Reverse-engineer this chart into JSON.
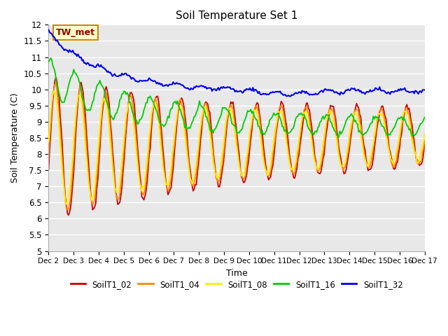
{
  "title": "Soil Temperature Set 1",
  "xlabel": "Time",
  "ylabel": "Soil Temperature (C)",
  "ylim": [
    5.0,
    12.0
  ],
  "yticks": [
    5.0,
    5.5,
    6.0,
    6.5,
    7.0,
    7.5,
    8.0,
    8.5,
    9.0,
    9.5,
    10.0,
    10.5,
    11.0,
    11.5,
    12.0
  ],
  "xtick_labels": [
    "Dec 2",
    "Dec 3",
    "Dec 4",
    "Dec 5",
    "Dec 6",
    "Dec 7",
    "Dec 8",
    "Dec 9",
    "Dec 10",
    "Dec 11",
    "Dec 12",
    "Dec 13",
    "Dec 14",
    "Dec 15",
    "Dec 16",
    "Dec 17"
  ],
  "series_colors": {
    "SoilT1_02": "#cc0000",
    "SoilT1_04": "#ff8800",
    "SoilT1_08": "#ffee00",
    "SoilT1_16": "#00cc00",
    "SoilT1_32": "#0000ee"
  },
  "legend_label": "TW_met",
  "legend_box_color": "#ffffcc",
  "legend_box_edge": "#cc8800",
  "plot_bg_color": "#e8e8e8",
  "grid_color": "#ffffff"
}
